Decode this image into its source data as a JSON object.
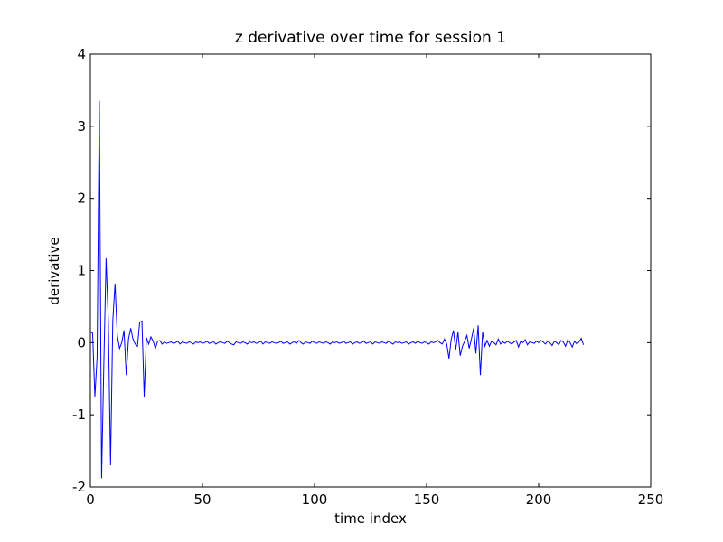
{
  "chart_data": {
    "type": "line",
    "title": "z derivative over time for session 1",
    "x_label": "time index",
    "y_label": "derivative",
    "xlim": [
      0,
      250
    ],
    "xticks": [
      0,
      50,
      100,
      150,
      200,
      250
    ],
    "ylim": [
      -2,
      4
    ],
    "yticks": [
      -2,
      -1,
      0,
      1,
      2,
      3,
      4
    ],
    "grid": false,
    "color": "#0000ff",
    "values": [
      0.15,
      0.13,
      -0.75,
      -0.2,
      3.35,
      -1.88,
      -0.3,
      1.17,
      0.3,
      -1.7,
      0.3,
      0.82,
      0.1,
      -0.08,
      0.0,
      0.17,
      -0.45,
      0.05,
      0.2,
      0.05,
      -0.02,
      -0.05,
      0.28,
      0.3,
      -0.75,
      0.07,
      -0.02,
      0.08,
      0.02,
      -0.08,
      0.02,
      0.03,
      -0.02,
      0.01,
      -0.01,
      0,
      0.01,
      -0.01,
      0,
      0.02,
      -0.02,
      0.01,
      0,
      -0.01,
      0.01,
      0,
      -0.02,
      0.01,
      0,
      0.01,
      -0.01,
      0,
      0.02,
      -0.01,
      0,
      0.01,
      -0.02,
      0,
      0.01,
      0,
      -0.01,
      0.02,
      0,
      -0.02,
      -0.03,
      0.01,
      0,
      -0.01,
      0.01,
      0,
      -0.02,
      0.01,
      0,
      0.01,
      -0.01,
      0,
      0.02,
      -0.02,
      0.01,
      0,
      -0.01,
      0.01,
      0,
      -0.01,
      0,
      0.02,
      -0.01,
      0,
      0.01,
      -0.02,
      0,
      0.01,
      -0.01,
      0.03,
      0,
      -0.02,
      0.01,
      0,
      -0.01,
      0.02,
      0,
      -0.01,
      0.01,
      0,
      -0.01,
      0.01,
      0,
      -0.02,
      0.01,
      0,
      0.01,
      -0.01,
      0,
      0.02,
      -0.01,
      0,
      0.01,
      -0.02,
      0,
      0.01,
      -0.01,
      0,
      0.02,
      -0.01,
      0,
      0.01,
      -0.02,
      0.01,
      0,
      -0.01,
      0.01,
      0,
      -0.01,
      0.02,
      0,
      -0.02,
      0.01,
      0,
      0.01,
      -0.01,
      0,
      0.01,
      -0.02,
      0,
      0.01,
      -0.01,
      0.02,
      0,
      -0.01,
      0.01,
      0,
      -0.02,
      0.01,
      0,
      0.01,
      0.03,
      0,
      -0.02,
      0.05,
      -0.02,
      -0.22,
      0.05,
      0.17,
      -0.1,
      0.15,
      -0.18,
      -0.05,
      0.02,
      0.1,
      -0.08,
      0.05,
      0.2,
      -0.15,
      0.24,
      -0.45,
      0.15,
      -0.05,
      0.03,
      -0.05,
      0.02,
      0,
      -0.03,
      0.05,
      -0.02,
      0.01,
      -0.01,
      0.02,
      0,
      -0.02,
      0.01,
      0.03,
      -0.06,
      0.02,
      0,
      0.04,
      -0.03,
      0.01,
      0,
      -0.01,
      0.02,
      0,
      0.03,
      0.01,
      -0.02,
      0.02,
      0,
      -0.04,
      0.02,
      0,
      -0.03,
      0.03,
      0.01,
      -0.05,
      0.04,
      0,
      -0.06,
      0.02,
      -0.02,
      0.01,
      0.06,
      -0.03
    ]
  }
}
